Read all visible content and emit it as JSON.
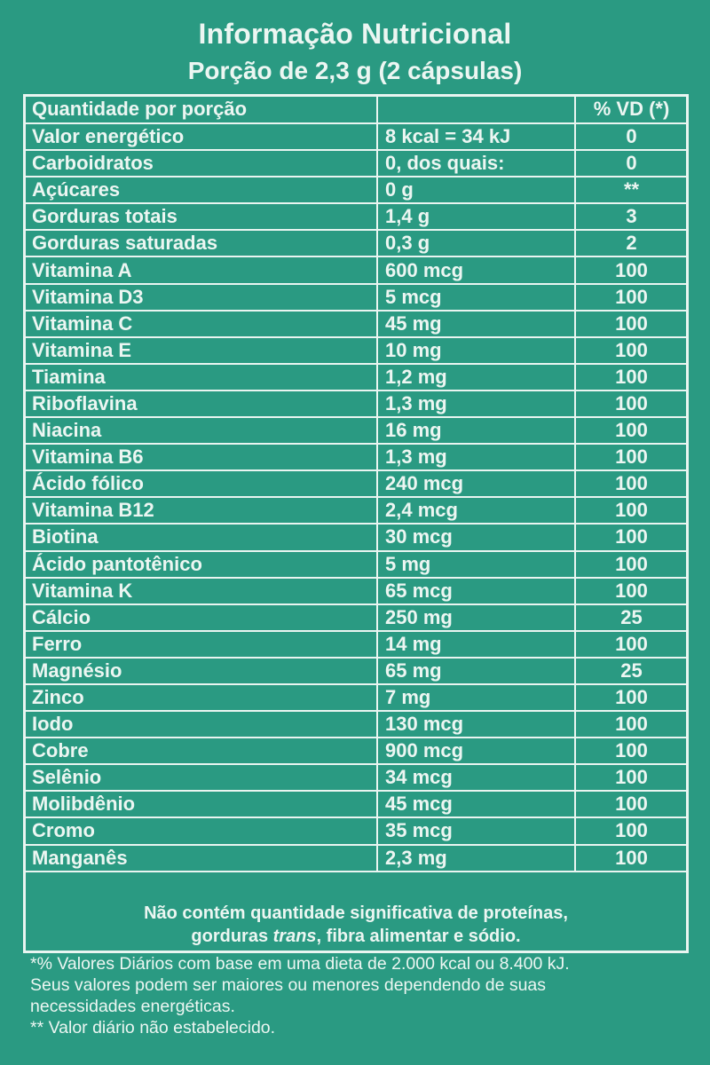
{
  "title": "Informação Nutricional",
  "subtitle": "Porção de 2,3 g (2 cápsulas)",
  "table": {
    "header": {
      "name": "Quantidade por porção",
      "amount": "",
      "vd": "% VD (*)"
    },
    "rows": [
      {
        "name": "Valor energético",
        "amount": "8 kcal = 34 kJ",
        "vd": "0"
      },
      {
        "name": "Carboidratos",
        "amount": "0, dos quais:",
        "vd": "0"
      },
      {
        "name": "Açúcares",
        "amount": "0 g",
        "vd": "**"
      },
      {
        "name": "Gorduras totais",
        "amount": "1,4 g",
        "vd": "3"
      },
      {
        "name": "Gorduras saturadas",
        "amount": "0,3 g",
        "vd": "2"
      },
      {
        "name": "Vitamina A",
        "amount": "600 mcg",
        "vd": "100"
      },
      {
        "name": "Vitamina D3",
        "amount": "5 mcg",
        "vd": "100"
      },
      {
        "name": "Vitamina C",
        "amount": "45 mg",
        "vd": "100"
      },
      {
        "name": "Vitamina E",
        "amount": "10 mg",
        "vd": "100"
      },
      {
        "name": "Tiamina",
        "amount": "1,2 mg",
        "vd": "100"
      },
      {
        "name": "Riboflavina",
        "amount": "1,3 mg",
        "vd": "100"
      },
      {
        "name": "Niacina",
        "amount": "16 mg",
        "vd": "100"
      },
      {
        "name": "Vitamina B6",
        "amount": "1,3 mg",
        "vd": "100"
      },
      {
        "name": "Ácido fólico",
        "amount": "240 mcg",
        "vd": "100"
      },
      {
        "name": "Vitamina B12",
        "amount": "2,4 mcg",
        "vd": "100"
      },
      {
        "name": "Biotina",
        "amount": "30 mcg",
        "vd": "100"
      },
      {
        "name": "Ácido pantotênico",
        "amount": "5 mg",
        "vd": "100"
      },
      {
        "name": "Vitamina K",
        "amount": "65 mcg",
        "vd": "100"
      },
      {
        "name": "Cálcio",
        "amount": "250 mg",
        "vd": "25"
      },
      {
        "name": "Ferro",
        "amount": "14 mg",
        "vd": "100"
      },
      {
        "name": "Magnésio",
        "amount": "65 mg",
        "vd": "25"
      },
      {
        "name": "Zinco",
        "amount": "7 mg",
        "vd": "100"
      },
      {
        "name": "Iodo",
        "amount": "130 mcg",
        "vd": "100"
      },
      {
        "name": "Cobre",
        "amount": "900 mcg",
        "vd": "100"
      },
      {
        "name": "Selênio",
        "amount": "34 mcg",
        "vd": "100"
      },
      {
        "name": "Molibdênio",
        "amount": "45 mcg",
        "vd": "100"
      },
      {
        "name": "Cromo",
        "amount": "35 mcg",
        "vd": "100"
      },
      {
        "name": "Manganês",
        "amount": "2,3 mg",
        "vd": "100"
      }
    ]
  },
  "notice": {
    "line1": "Não contém quantidade significativa de proteínas,",
    "line2_before": "gorduras ",
    "line2_italic": "trans",
    "line2_after": ", fibra alimentar e sódio."
  },
  "footnotes": [
    "*% Valores Diários com base em uma dieta de 2.000 kcal ou 8.400 kJ.",
    "Seus valores podem ser maiores ou menores dependendo de suas",
    "necessidades energéticas.",
    "** Valor diário não estabelecido."
  ],
  "colors": {
    "background": "#2a9a82",
    "ink": "#ecf6f2"
  }
}
